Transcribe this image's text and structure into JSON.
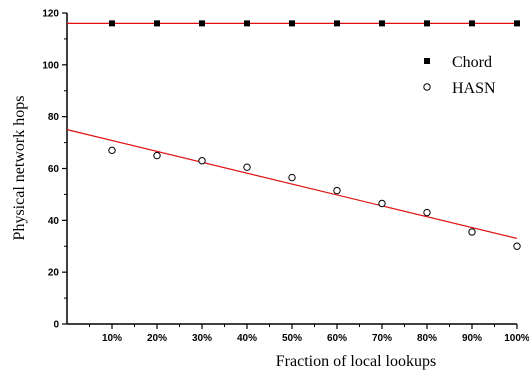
{
  "chart_data": {
    "type": "scatter",
    "title": "",
    "xlabel": "Fraction of local lookups",
    "ylabel": "Physical network hops",
    "categories": [
      "10%",
      "20%",
      "30%",
      "40%",
      "50%",
      "60%",
      "70%",
      "80%",
      "90%",
      "100%"
    ],
    "x": [
      10,
      20,
      30,
      40,
      50,
      60,
      70,
      80,
      90,
      100
    ],
    "xlim": [
      0,
      100
    ],
    "ylim": [
      0,
      120
    ],
    "yticks": [
      0,
      20,
      40,
      60,
      80,
      100,
      120
    ],
    "grid": false,
    "legend_position": "top-right",
    "series": [
      {
        "name": "Chord",
        "marker": "filled-square",
        "color": "#000000",
        "values": [
          116,
          116,
          116,
          116,
          116,
          116,
          116,
          116,
          116,
          116
        ],
        "fit": {
          "color": "#e01010",
          "y_at_xmin": 116,
          "y_at_xmax": 116
        }
      },
      {
        "name": "HASN",
        "marker": "open-circle",
        "color": "#000000",
        "values": [
          67,
          65,
          63,
          60.5,
          56.5,
          51.5,
          46.5,
          43,
          35.5,
          30
        ],
        "fit": {
          "color": "#e01010",
          "y_at_xmin": 75,
          "y_at_xmax": 33
        }
      }
    ]
  }
}
